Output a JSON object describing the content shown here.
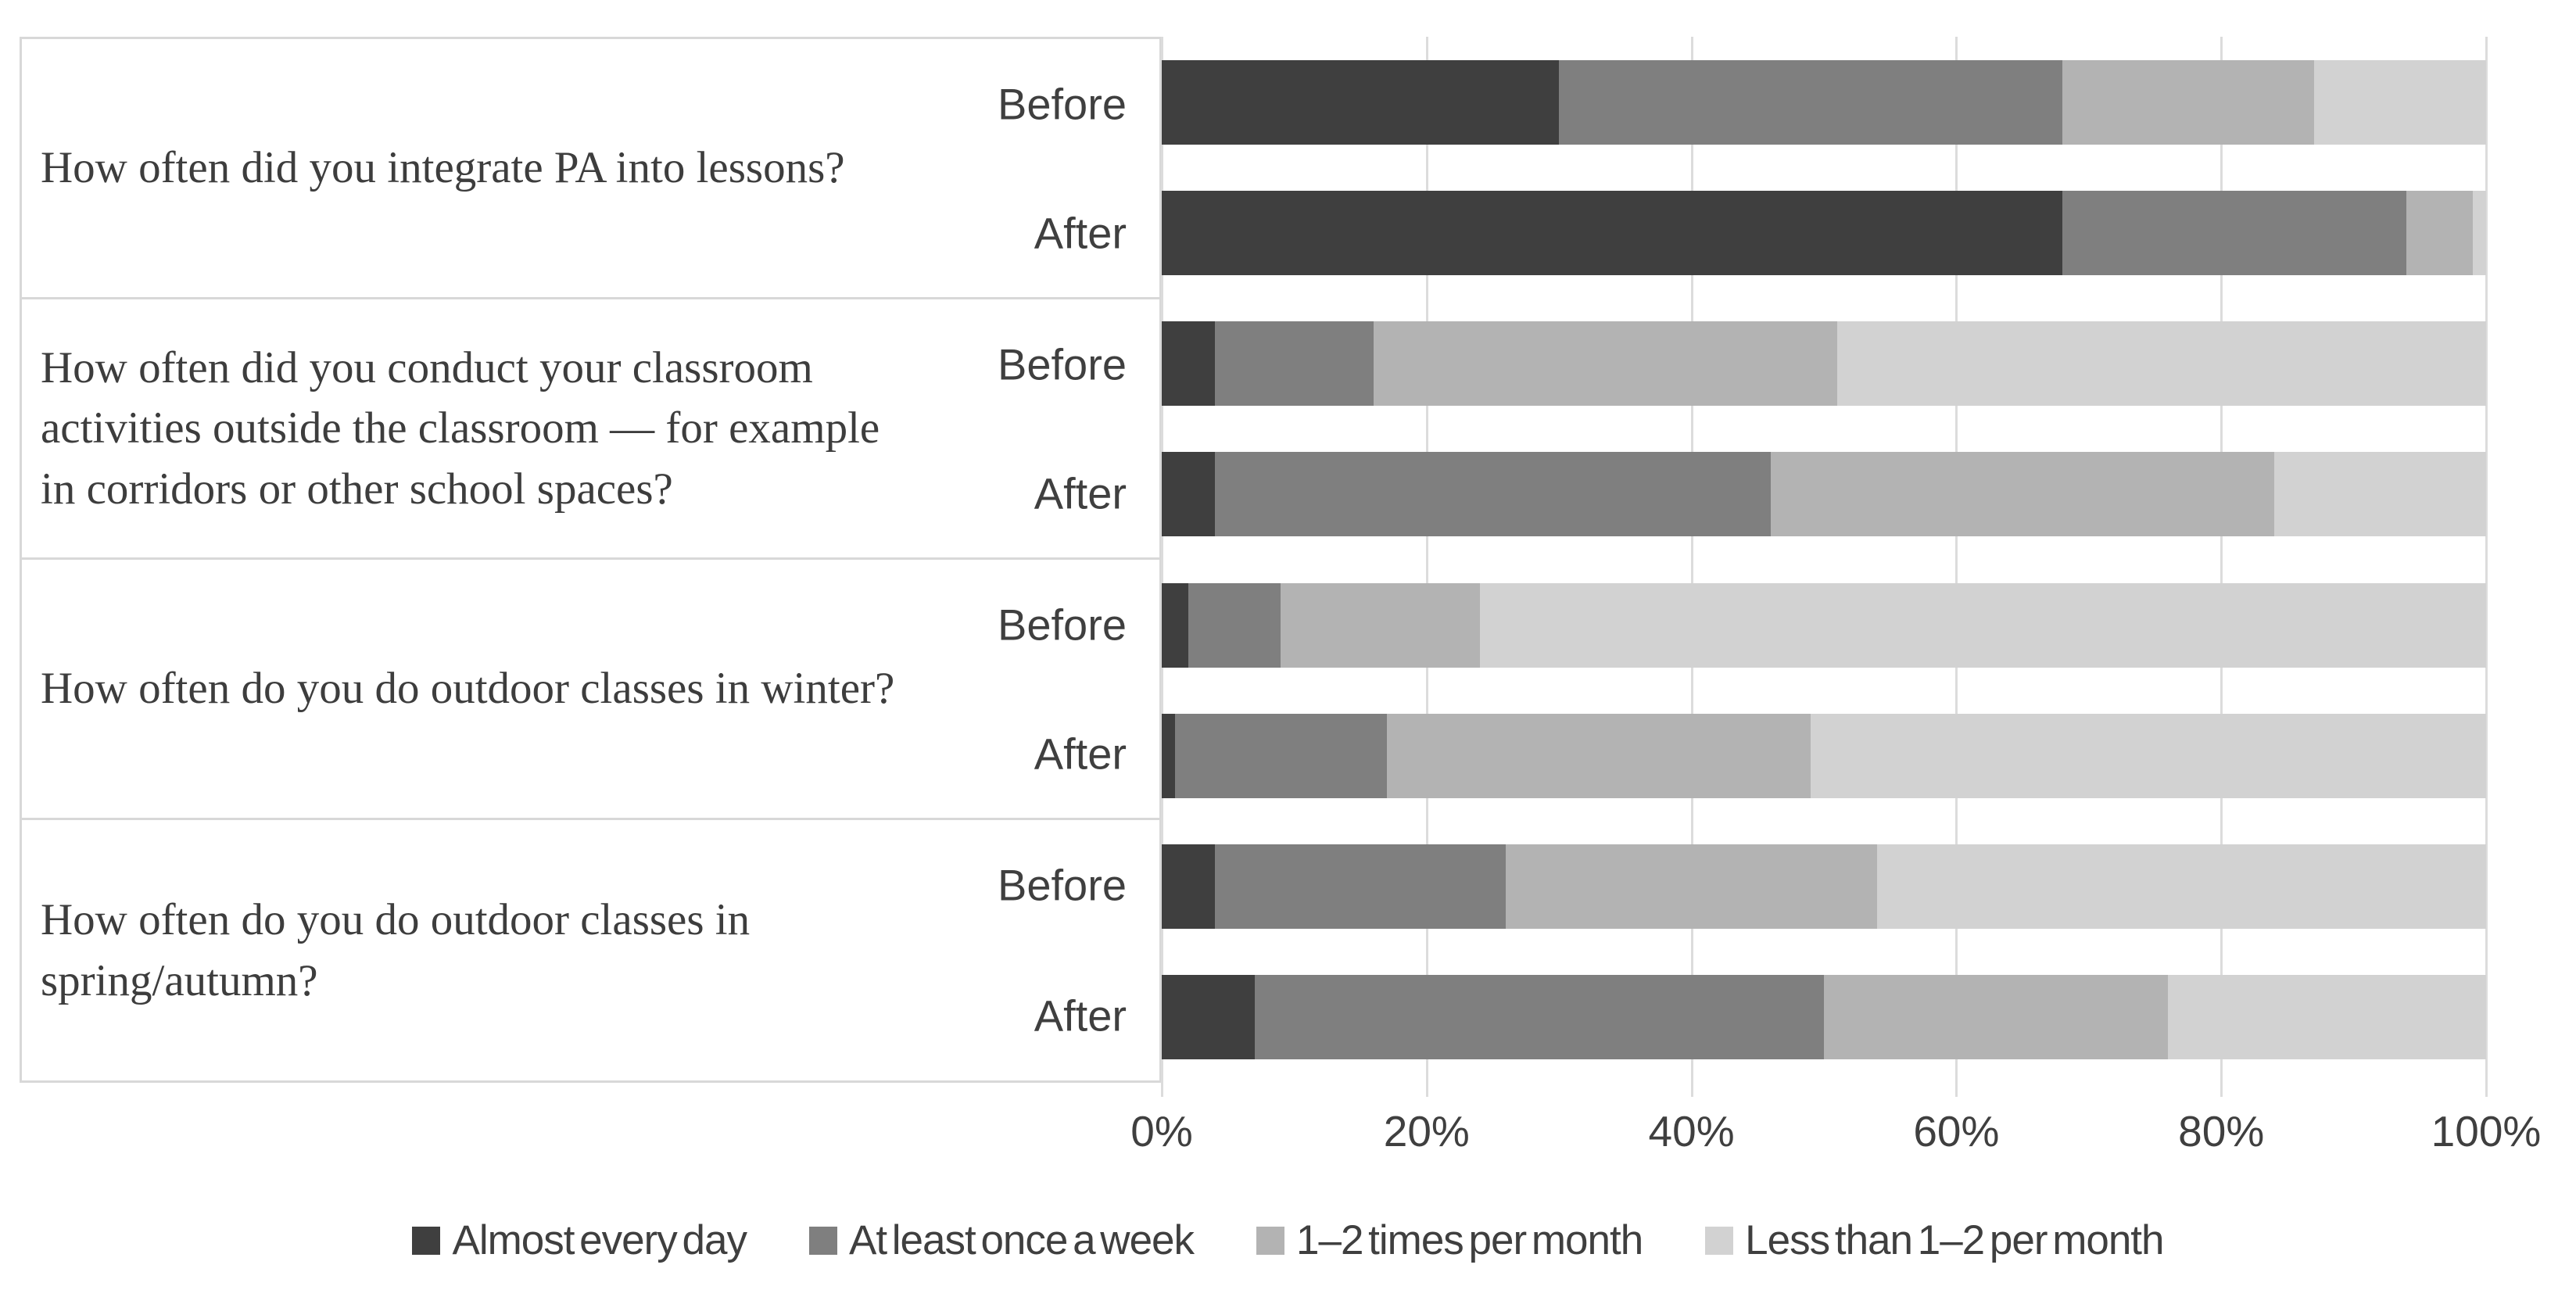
{
  "chart_data": {
    "type": "bar",
    "orientation": "horizontal",
    "stacked": true,
    "unit": "percent",
    "xlim": [
      0,
      100
    ],
    "x_ticks": [
      "0%",
      "20%",
      "40%",
      "60%",
      "80%",
      "100%"
    ],
    "grid": "vertical",
    "legend_position": "bottom",
    "series_names": [
      "Almost every day",
      "At least once a week",
      "1–2 times per month",
      "Less than 1–2 per month"
    ],
    "series_colors": [
      "#3f3f3f",
      "#7f7f7f",
      "#b3b3b3",
      "#d2d2d2"
    ],
    "grid_color": "#dcdcdc",
    "table_border_color": "#d8d8d8",
    "groups": [
      {
        "question": "How often did you integrate PA into lessons?",
        "bars": [
          {
            "label": "Before",
            "values": [
              30,
              38,
              19,
              13
            ]
          },
          {
            "label": "After",
            "values": [
              68,
              26,
              5,
              1
            ]
          }
        ]
      },
      {
        "question": "How often did you conduct your classroom activities outside the classroom — for example in corridors or other school spaces?",
        "bars": [
          {
            "label": "Before",
            "values": [
              4,
              12,
              35,
              49
            ]
          },
          {
            "label": "After",
            "values": [
              4,
              42,
              38,
              16
            ]
          }
        ]
      },
      {
        "question": "How often do you do outdoor classes in winter?",
        "bars": [
          {
            "label": "Before",
            "values": [
              2,
              7,
              15,
              76
            ]
          },
          {
            "label": "After",
            "values": [
              1,
              16,
              32,
              51
            ]
          }
        ]
      },
      {
        "question": "How often do you do outdoor classes in spring/autumn?",
        "bars": [
          {
            "label": "Before",
            "values": [
              4,
              22,
              28,
              46
            ]
          },
          {
            "label": "After",
            "values": [
              7,
              43,
              26,
              24
            ]
          }
        ]
      }
    ]
  }
}
